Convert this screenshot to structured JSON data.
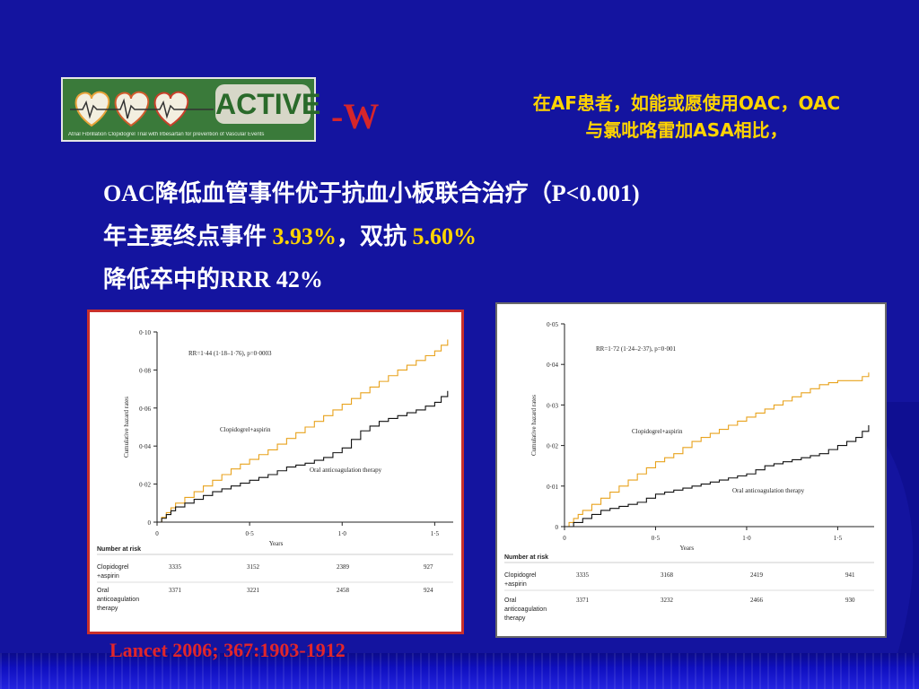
{
  "logo": {
    "name": "ACTIVE",
    "tagline": "Atrial Fibrillation Clopidogrel Trial with Irbesartan for prevention of Vascular Events"
  },
  "title_suffix": "-W",
  "heading": {
    "line1": "在AF患者，如能或愿使用OAC，OAC",
    "line2": "与氯吡咯雷加ASA相比，"
  },
  "bullets": {
    "line1": "OAC降低血管事件优于抗血小板联合治疗（P<0.001)",
    "line2_prefix": "年主要终点事件 ",
    "line2_value1": "3.93%",
    "line2_mid": "，双抗 ",
    "line2_value2": "5.60%",
    "line3": "降低卒中的RRR 42%"
  },
  "citation": "Lancet 2006; 367:1903-1912",
  "colors": {
    "background": "#14149f",
    "heading": "#ffd400",
    "accent_red": "#e2262a",
    "clopidogrel_line": "#e8a21c",
    "oac_line": "#111111"
  },
  "chart_data": [
    {
      "type": "line",
      "ylabel": "Cumulative hazard rates",
      "xlabel": "Years",
      "ylim": [
        0,
        0.1
      ],
      "xlim": [
        0,
        1.6
      ],
      "y_ticks": [
        "0",
        "0·02",
        "0·04",
        "0·06",
        "0·08",
        "0·10"
      ],
      "x_ticks": [
        "0",
        "0·5",
        "1·0",
        "1·5"
      ],
      "annotation": "RR=1·44 (1·18–1·76), p=0·0003",
      "series": [
        {
          "name": "Clopidogrel+aspirin",
          "points": [
            [
              0,
              0
            ],
            [
              0.05,
              0.005
            ],
            [
              0.1,
              0.01
            ],
            [
              0.2,
              0.016
            ],
            [
              0.3,
              0.022
            ],
            [
              0.4,
              0.028
            ],
            [
              0.5,
              0.033
            ],
            [
              0.6,
              0.038
            ],
            [
              0.7,
              0.044
            ],
            [
              0.8,
              0.05
            ],
            [
              0.9,
              0.056
            ],
            [
              1.0,
              0.062
            ],
            [
              1.1,
              0.068
            ],
            [
              1.2,
              0.074
            ],
            [
              1.3,
              0.08
            ],
            [
              1.4,
              0.085
            ],
            [
              1.5,
              0.09
            ],
            [
              1.57,
              0.096
            ]
          ]
        },
        {
          "name": "Oral anticoagulation therapy",
          "points": [
            [
              0,
              0
            ],
            [
              0.05,
              0.004
            ],
            [
              0.1,
              0.008
            ],
            [
              0.2,
              0.012
            ],
            [
              0.3,
              0.016
            ],
            [
              0.4,
              0.019
            ],
            [
              0.5,
              0.022
            ],
            [
              0.6,
              0.025
            ],
            [
              0.7,
              0.029
            ],
            [
              0.8,
              0.031
            ],
            [
              0.9,
              0.034
            ],
            [
              1.0,
              0.039
            ],
            [
              1.1,
              0.048
            ],
            [
              1.2,
              0.053
            ],
            [
              1.3,
              0.056
            ],
            [
              1.4,
              0.059
            ],
            [
              1.5,
              0.063
            ],
            [
              1.57,
              0.069
            ]
          ]
        }
      ],
      "risk_table": {
        "header": "Number at risk",
        "rows": [
          {
            "label_line1": "Clopidogrel",
            "label_line2": "+aspirin",
            "values": [
              "3335",
              "3152",
              "2389",
              "927"
            ]
          },
          {
            "label_line1": "Oral",
            "label_line2": "anticoagulation",
            "label_line3": "therapy",
            "values": [
              "3371",
              "3221",
              "2458",
              "924"
            ]
          }
        ]
      }
    },
    {
      "type": "line",
      "ylabel": "Cumulative hazard rates",
      "xlabel": "Years",
      "ylim": [
        0,
        0.05
      ],
      "xlim": [
        0,
        1.7
      ],
      "y_ticks": [
        "0",
        "0·01",
        "0·02",
        "0·03",
        "0·04",
        "0·05"
      ],
      "x_ticks": [
        "0",
        "0·5",
        "1·0",
        "1·5"
      ],
      "annotation": "RR=1·72 (1·24–2·37), p=0·001",
      "series": [
        {
          "name": "Clopidogrel+aspirin",
          "points": [
            [
              0,
              0
            ],
            [
              0.05,
              0.002
            ],
            [
              0.1,
              0.004
            ],
            [
              0.2,
              0.007
            ],
            [
              0.3,
              0.01
            ],
            [
              0.4,
              0.013
            ],
            [
              0.5,
              0.016
            ],
            [
              0.6,
              0.018
            ],
            [
              0.7,
              0.021
            ],
            [
              0.8,
              0.023
            ],
            [
              0.9,
              0.025
            ],
            [
              1.0,
              0.027
            ],
            [
              1.1,
              0.029
            ],
            [
              1.2,
              0.031
            ],
            [
              1.3,
              0.033
            ],
            [
              1.4,
              0.035
            ],
            [
              1.5,
              0.036
            ],
            [
              1.6,
              0.036
            ],
            [
              1.67,
              0.038
            ]
          ]
        },
        {
          "name": "Oral anticoagulation therapy",
          "points": [
            [
              0,
              0
            ],
            [
              0.1,
              0.002
            ],
            [
              0.2,
              0.004
            ],
            [
              0.3,
              0.005
            ],
            [
              0.4,
              0.006
            ],
            [
              0.5,
              0.008
            ],
            [
              0.6,
              0.009
            ],
            [
              0.7,
              0.01
            ],
            [
              0.8,
              0.011
            ],
            [
              0.9,
              0.012
            ],
            [
              1.0,
              0.013
            ],
            [
              1.1,
              0.015
            ],
            [
              1.2,
              0.016
            ],
            [
              1.3,
              0.017
            ],
            [
              1.4,
              0.018
            ],
            [
              1.5,
              0.02
            ],
            [
              1.6,
              0.022
            ],
            [
              1.67,
              0.025
            ]
          ]
        }
      ],
      "risk_table": {
        "header": "Number at risk",
        "rows": [
          {
            "label_line1": "Clopidogrel",
            "label_line2": "+aspirin",
            "values": [
              "3335",
              "3168",
              "2419",
              "941"
            ]
          },
          {
            "label_line1": "Oral",
            "label_line2": "anticoagulation",
            "label_line3": "therapy",
            "values": [
              "3371",
              "3232",
              "2466",
              "930"
            ]
          }
        ]
      }
    }
  ]
}
